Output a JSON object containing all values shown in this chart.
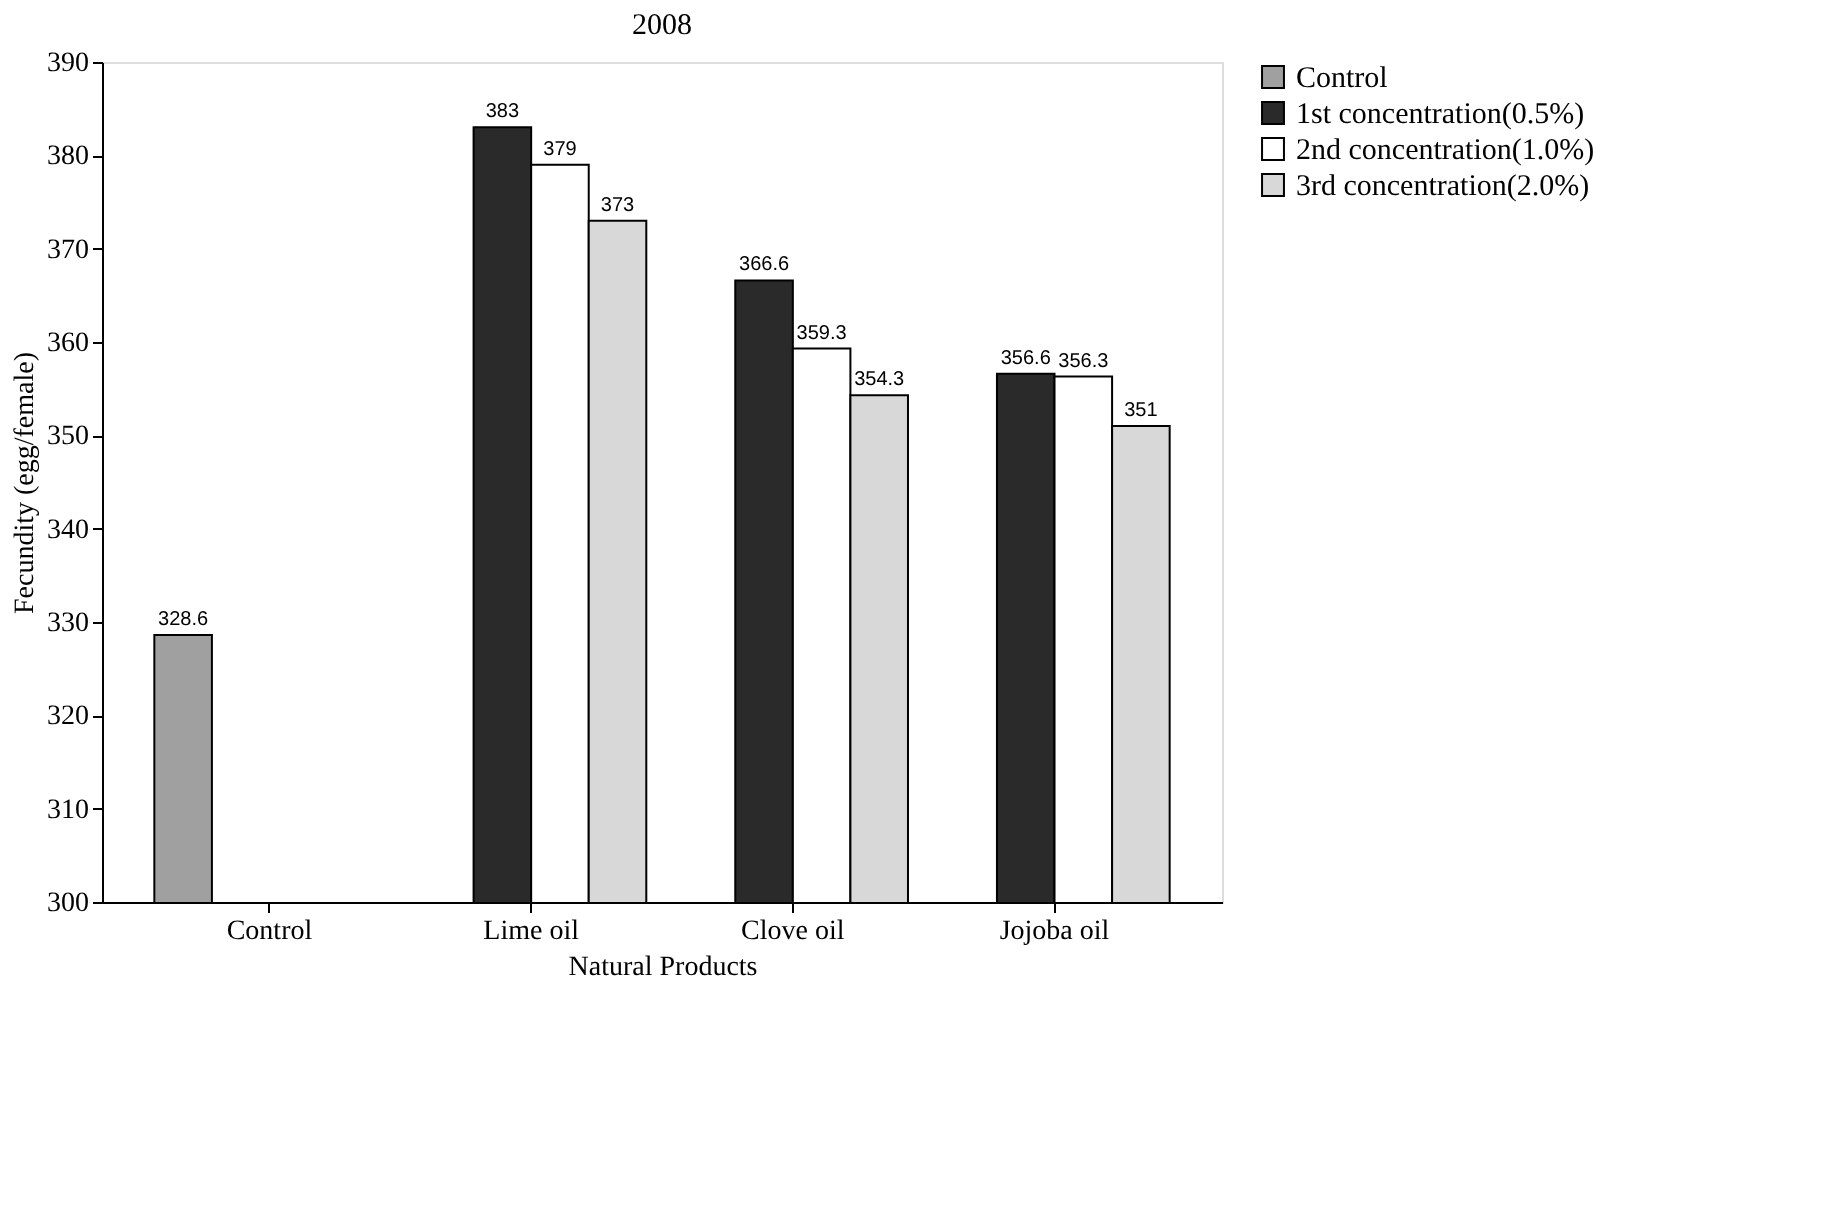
{
  "chart_data": {
    "type": "bar",
    "title": "2008",
    "xlabel": "Natural Products",
    "ylabel": "Fecundity (egg/female)",
    "categories": [
      "Control",
      "Lime oil",
      "Clove oil",
      "Jojoba oil"
    ],
    "series": [
      {
        "name": "Control",
        "color": "#a0a0a0",
        "values": [
          328.6,
          null,
          null,
          null
        ]
      },
      {
        "name": "1st concentration(0.5%)",
        "color": "#2a2a2a",
        "values": [
          null,
          383,
          366.6,
          356.6
        ]
      },
      {
        "name": "2nd concentration(1.0%)",
        "color": "#ffffff",
        "values": [
          null,
          379,
          359.3,
          356.3
        ]
      },
      {
        "name": "3rd concentration(2.0%)",
        "color": "#d8d8d8",
        "values": [
          null,
          373,
          354.3,
          351
        ]
      }
    ],
    "ylim": [
      300,
      390
    ],
    "yticks": [
      300,
      310,
      320,
      330,
      340,
      350,
      360,
      370,
      380,
      390
    ],
    "data_labels": true,
    "grid": false,
    "legend": "right"
  }
}
